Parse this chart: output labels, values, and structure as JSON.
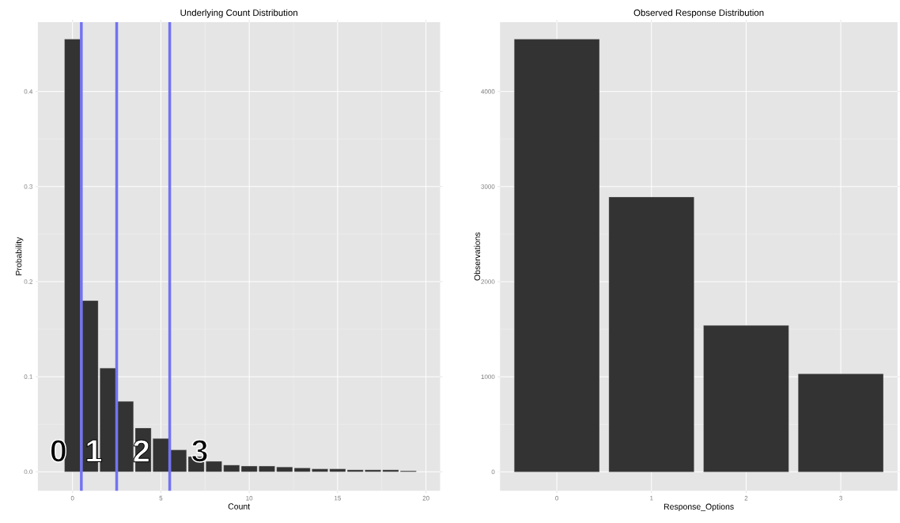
{
  "chart_data": [
    {
      "type": "bar",
      "title": "Underlying Count Distribution",
      "xlabel": "Count",
      "ylabel": "Probability",
      "x": [
        0,
        1,
        2,
        3,
        4,
        5,
        6,
        7,
        8,
        9,
        10,
        11,
        12,
        13,
        14,
        15,
        16,
        17,
        18,
        19
      ],
      "values": [
        0.455,
        0.18,
        0.109,
        0.074,
        0.046,
        0.035,
        0.023,
        0.016,
        0.011,
        0.007,
        0.006,
        0.006,
        0.005,
        0.004,
        0.003,
        0.003,
        0.002,
        0.002,
        0.002,
        0.001
      ],
      "color": "#333333",
      "xlim": [
        -1.96,
        20.8
      ],
      "ylim": [
        -0.02,
        0.473
      ],
      "xticks": [
        0,
        5,
        10,
        15,
        20
      ],
      "yticks": [
        {
          "value": 0,
          "label": "0.0"
        },
        {
          "value": 0.1,
          "label": "0.1"
        },
        {
          "value": 0.2,
          "label": "0.2"
        },
        {
          "value": 0.3,
          "label": "0.3"
        },
        {
          "value": 0.4,
          "label": "0.4"
        }
      ],
      "grid": true,
      "ref_lines": [
        {
          "axis": "x",
          "value": 0.5,
          "color": "#7373f2"
        },
        {
          "axis": "x",
          "value": 2.5,
          "color": "#7373f2"
        },
        {
          "axis": "x",
          "value": 5.5,
          "color": "#7373f2"
        }
      ],
      "annotations": [
        {
          "text": "0",
          "x": -0.8,
          "y": 0.022
        },
        {
          "text": "1",
          "x": 1.2,
          "y": 0.022
        },
        {
          "text": "2",
          "x": 3.9,
          "y": 0.022
        },
        {
          "text": "3",
          "x": 7.2,
          "y": 0.022
        }
      ]
    },
    {
      "type": "bar",
      "title": "Observed Response Distribution",
      "xlabel": "Response_Options",
      "ylabel": "Observations",
      "categories": [
        "0",
        "1",
        "2",
        "3"
      ],
      "values": [
        4550,
        2890,
        1540,
        1030
      ],
      "color": "#333333",
      "ylim": [
        -199,
        4730
      ],
      "yticks": [
        0,
        1000,
        2000,
        3000,
        4000
      ],
      "grid": true
    }
  ]
}
